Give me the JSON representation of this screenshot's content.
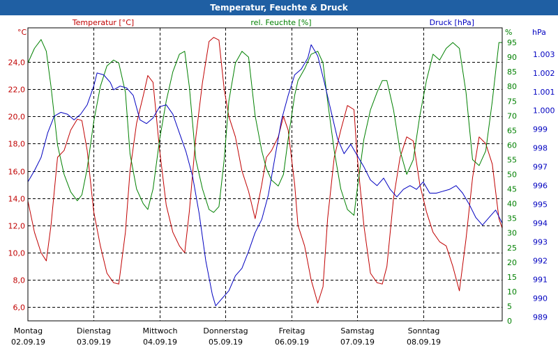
{
  "window": {
    "title": "Temperatur, Feuchte & Druck"
  },
  "colors": {
    "temperature": "#c00000",
    "humidity": "#008000",
    "pressure": "#0000c0",
    "grid": "#000000",
    "title_bar": "#1f5fa3"
  },
  "chart_data": {
    "type": "line",
    "title": "Temperatur, Feuchte & Druck",
    "grid": true,
    "x_unit": "days since 02.09.19 00:00",
    "xlim": [
      0,
      7.2
    ],
    "day_labels": [
      {
        "x": 0,
        "day": "Montag",
        "date": "02.09.19"
      },
      {
        "x": 1,
        "day": "Dienstag",
        "date": "03.09.19"
      },
      {
        "x": 2,
        "day": "Mittwoch",
        "date": "04.09.19"
      },
      {
        "x": 3,
        "day": "Donnerstag",
        "date": "05.09.19"
      },
      {
        "x": 4,
        "day": "Freitag",
        "date": "06.09.19"
      },
      {
        "x": 5,
        "day": "Samstag",
        "date": "07.09.19"
      },
      {
        "x": 6,
        "day": "Sonntag",
        "date": "08.09.19"
      }
    ],
    "axes": {
      "temperature": {
        "label": "Temperatur [°C]",
        "unit": "°C",
        "side": "left",
        "range": [
          5.0,
          26.5
        ],
        "ticks": [
          {
            "v": 6,
            "t": "6,0"
          },
          {
            "v": 8,
            "t": "8,0"
          },
          {
            "v": 10,
            "t": "10,0"
          },
          {
            "v": 12,
            "t": "12,0"
          },
          {
            "v": 14,
            "t": "14,0"
          },
          {
            "v": 16,
            "t": "16,0"
          },
          {
            "v": 18,
            "t": "18,0"
          },
          {
            "v": 20,
            "t": "20,0"
          },
          {
            "v": 22,
            "t": "22,0"
          },
          {
            "v": 24,
            "t": "24,0"
          }
        ]
      },
      "humidity": {
        "label": "rel. Feuchte [%]",
        "unit": "%",
        "side": "right",
        "range": [
          0,
          100
        ],
        "ticks": [
          {
            "v": 0,
            "t": "0"
          },
          {
            "v": 5,
            "t": "5"
          },
          {
            "v": 10,
            "t": "10"
          },
          {
            "v": 15,
            "t": "15"
          },
          {
            "v": 20,
            "t": "20"
          },
          {
            "v": 25,
            "t": "25"
          },
          {
            "v": 30,
            "t": "30"
          },
          {
            "v": 35,
            "t": "35"
          },
          {
            "v": 40,
            "t": "40"
          },
          {
            "v": 45,
            "t": "45"
          },
          {
            "v": 50,
            "t": "50"
          },
          {
            "v": 55,
            "t": "55"
          },
          {
            "v": 60,
            "t": "60"
          },
          {
            "v": 65,
            "t": "65"
          },
          {
            "v": 70,
            "t": "70"
          },
          {
            "v": 75,
            "t": "75"
          },
          {
            "v": 80,
            "t": "80"
          },
          {
            "v": 85,
            "t": "85"
          },
          {
            "v": 90,
            "t": "90"
          },
          {
            "v": 95,
            "t": "95"
          }
        ]
      },
      "pressure": {
        "label": "Druck [hPa]",
        "unit": "hPa",
        "side": "right",
        "range": [
          988.8,
          1004.4
        ],
        "ticks": [
          {
            "v": 989,
            "t": "989"
          },
          {
            "v": 990,
            "t": "990"
          },
          {
            "v": 991,
            "t": "991"
          },
          {
            "v": 992,
            "t": "992"
          },
          {
            "v": 993,
            "t": "993"
          },
          {
            "v": 994,
            "t": "994"
          },
          {
            "v": 995,
            "t": "995"
          },
          {
            "v": 996,
            "t": "996"
          },
          {
            "v": 997,
            "t": "997"
          },
          {
            "v": 998,
            "t": "998"
          },
          {
            "v": 999,
            "t": "999"
          },
          {
            "v": 1000,
            "t": "1.000"
          },
          {
            "v": 1001,
            "t": "1.001"
          },
          {
            "v": 1002,
            "t": "1.002"
          },
          {
            "v": 1003,
            "t": "1.003"
          }
        ]
      }
    },
    "series": [
      {
        "name": "Temperatur",
        "axis": "temperature",
        "points": [
          [
            0.0,
            13.8
          ],
          [
            0.1,
            11.5
          ],
          [
            0.2,
            10.0
          ],
          [
            0.28,
            9.4
          ],
          [
            0.35,
            12.0
          ],
          [
            0.45,
            17.0
          ],
          [
            0.55,
            17.5
          ],
          [
            0.65,
            19.0
          ],
          [
            0.75,
            19.8
          ],
          [
            0.82,
            19.7
          ],
          [
            0.9,
            17.5
          ],
          [
            1.0,
            13.0
          ],
          [
            1.1,
            10.5
          ],
          [
            1.2,
            8.5
          ],
          [
            1.3,
            7.8
          ],
          [
            1.38,
            7.7
          ],
          [
            1.48,
            11.5
          ],
          [
            1.55,
            16.0
          ],
          [
            1.65,
            19.5
          ],
          [
            1.75,
            21.5
          ],
          [
            1.82,
            23.0
          ],
          [
            1.9,
            22.5
          ],
          [
            2.0,
            17.5
          ],
          [
            2.1,
            13.5
          ],
          [
            2.2,
            11.5
          ],
          [
            2.3,
            10.5
          ],
          [
            2.38,
            10.0
          ],
          [
            2.45,
            13.0
          ],
          [
            2.55,
            18.5
          ],
          [
            2.65,
            22.5
          ],
          [
            2.75,
            25.5
          ],
          [
            2.82,
            25.8
          ],
          [
            2.9,
            25.6
          ],
          [
            2.98,
            22.0
          ],
          [
            3.05,
            20.0
          ],
          [
            3.15,
            18.5
          ],
          [
            3.25,
            16.0
          ],
          [
            3.35,
            14.5
          ],
          [
            3.45,
            12.5
          ],
          [
            3.55,
            15.0
          ],
          [
            3.62,
            17.0
          ],
          [
            3.7,
            17.5
          ],
          [
            3.8,
            18.5
          ],
          [
            3.88,
            20.0
          ],
          [
            3.95,
            19.0
          ],
          [
            4.05,
            15.0
          ],
          [
            4.1,
            12.0
          ],
          [
            4.2,
            10.5
          ],
          [
            4.3,
            8.0
          ],
          [
            4.4,
            6.3
          ],
          [
            4.48,
            7.5
          ],
          [
            4.55,
            12.5
          ],
          [
            4.65,
            17.0
          ],
          [
            4.75,
            19.0
          ],
          [
            4.85,
            20.8
          ],
          [
            4.95,
            20.5
          ],
          [
            5.0,
            17.0
          ],
          [
            5.1,
            12.0
          ],
          [
            5.2,
            8.5
          ],
          [
            5.3,
            7.8
          ],
          [
            5.38,
            7.7
          ],
          [
            5.45,
            9.0
          ],
          [
            5.55,
            14.0
          ],
          [
            5.65,
            17.0
          ],
          [
            5.75,
            18.5
          ],
          [
            5.85,
            18.2
          ],
          [
            5.95,
            15.0
          ],
          [
            6.05,
            13.0
          ],
          [
            6.15,
            11.5
          ],
          [
            6.25,
            10.8
          ],
          [
            6.35,
            10.5
          ],
          [
            6.45,
            9.0
          ],
          [
            6.55,
            7.2
          ],
          [
            6.65,
            11.0
          ],
          [
            6.75,
            15.5
          ],
          [
            6.85,
            18.5
          ],
          [
            6.95,
            18.0
          ],
          [
            7.05,
            16.5
          ],
          [
            7.15,
            12.5
          ],
          [
            7.2,
            11.8
          ]
        ]
      },
      {
        "name": "rel. Feuchte",
        "axis": "humidity",
        "points": [
          [
            0.0,
            88
          ],
          [
            0.1,
            93
          ],
          [
            0.2,
            96
          ],
          [
            0.28,
            92
          ],
          [
            0.35,
            80
          ],
          [
            0.45,
            60
          ],
          [
            0.55,
            50
          ],
          [
            0.65,
            44
          ],
          [
            0.75,
            41
          ],
          [
            0.82,
            43
          ],
          [
            0.9,
            52
          ],
          [
            1.0,
            68
          ],
          [
            1.1,
            80
          ],
          [
            1.2,
            87
          ],
          [
            1.3,
            89
          ],
          [
            1.38,
            88
          ],
          [
            1.48,
            78
          ],
          [
            1.55,
            57
          ],
          [
            1.65,
            45
          ],
          [
            1.75,
            40
          ],
          [
            1.82,
            38
          ],
          [
            1.9,
            45
          ],
          [
            2.0,
            62
          ],
          [
            2.1,
            75
          ],
          [
            2.2,
            85
          ],
          [
            2.3,
            91
          ],
          [
            2.38,
            92
          ],
          [
            2.45,
            80
          ],
          [
            2.55,
            55
          ],
          [
            2.65,
            45
          ],
          [
            2.75,
            38
          ],
          [
            2.82,
            37
          ],
          [
            2.9,
            39
          ],
          [
            2.98,
            55
          ],
          [
            3.05,
            75
          ],
          [
            3.15,
            88
          ],
          [
            3.25,
            92
          ],
          [
            3.35,
            90
          ],
          [
            3.45,
            70
          ],
          [
            3.55,
            58
          ],
          [
            3.62,
            52
          ],
          [
            3.7,
            48
          ],
          [
            3.8,
            46
          ],
          [
            3.88,
            50
          ],
          [
            3.95,
            62
          ],
          [
            4.05,
            77
          ],
          [
            4.1,
            82
          ],
          [
            4.2,
            86
          ],
          [
            4.3,
            91
          ],
          [
            4.4,
            92
          ],
          [
            4.48,
            88
          ],
          [
            4.55,
            75
          ],
          [
            4.65,
            58
          ],
          [
            4.75,
            45
          ],
          [
            4.85,
            38
          ],
          [
            4.95,
            36
          ],
          [
            5.0,
            45
          ],
          [
            5.1,
            62
          ],
          [
            5.2,
            72
          ],
          [
            5.3,
            78
          ],
          [
            5.38,
            82
          ],
          [
            5.45,
            82
          ],
          [
            5.55,
            72
          ],
          [
            5.65,
            58
          ],
          [
            5.75,
            50
          ],
          [
            5.85,
            55
          ],
          [
            5.95,
            70
          ],
          [
            6.05,
            82
          ],
          [
            6.15,
            91
          ],
          [
            6.25,
            89
          ],
          [
            6.35,
            93
          ],
          [
            6.45,
            95
          ],
          [
            6.55,
            93
          ],
          [
            6.65,
            78
          ],
          [
            6.75,
            55
          ],
          [
            6.85,
            53
          ],
          [
            6.95,
            58
          ],
          [
            7.05,
            75
          ],
          [
            7.15,
            95
          ],
          [
            7.2,
            95
          ]
        ]
      },
      {
        "name": "Druck",
        "axis": "pressure",
        "points": [
          [
            0.0,
            996.2
          ],
          [
            0.1,
            996.8
          ],
          [
            0.2,
            997.5
          ],
          [
            0.3,
            998.8
          ],
          [
            0.4,
            999.7
          ],
          [
            0.5,
            999.9
          ],
          [
            0.6,
            999.8
          ],
          [
            0.7,
            999.5
          ],
          [
            0.8,
            999.8
          ],
          [
            0.9,
            1000.3
          ],
          [
            1.0,
            1001.3
          ],
          [
            1.05,
            1002.0
          ],
          [
            1.15,
            1001.9
          ],
          [
            1.25,
            1001.5
          ],
          [
            1.3,
            1001.1
          ],
          [
            1.4,
            1001.3
          ],
          [
            1.5,
            1001.2
          ],
          [
            1.6,
            1000.8
          ],
          [
            1.7,
            999.5
          ],
          [
            1.8,
            999.3
          ],
          [
            1.9,
            999.6
          ],
          [
            2.0,
            1000.2
          ],
          [
            2.1,
            1000.3
          ],
          [
            2.2,
            999.8
          ],
          [
            2.3,
            998.8
          ],
          [
            2.4,
            997.8
          ],
          [
            2.5,
            996.5
          ],
          [
            2.6,
            994.5
          ],
          [
            2.7,
            992.0
          ],
          [
            2.8,
            990.2
          ],
          [
            2.85,
            989.6
          ],
          [
            2.95,
            990.0
          ],
          [
            3.05,
            990.4
          ],
          [
            3.15,
            991.2
          ],
          [
            3.25,
            991.6
          ],
          [
            3.35,
            992.5
          ],
          [
            3.45,
            993.5
          ],
          [
            3.55,
            994.2
          ],
          [
            3.65,
            995.5
          ],
          [
            3.75,
            997.5
          ],
          [
            3.85,
            999.5
          ],
          [
            3.95,
            1000.8
          ],
          [
            4.05,
            1001.9
          ],
          [
            4.15,
            1002.2
          ],
          [
            4.25,
            1002.8
          ],
          [
            4.3,
            1003.5
          ],
          [
            4.4,
            1002.9
          ],
          [
            4.5,
            1001.5
          ],
          [
            4.6,
            1000.0
          ],
          [
            4.7,
            998.5
          ],
          [
            4.8,
            997.7
          ],
          [
            4.9,
            998.2
          ],
          [
            5.0,
            997.6
          ],
          [
            5.1,
            997.0
          ],
          [
            5.2,
            996.3
          ],
          [
            5.3,
            996.0
          ],
          [
            5.4,
            996.4
          ],
          [
            5.5,
            995.8
          ],
          [
            5.6,
            995.4
          ],
          [
            5.7,
            995.8
          ],
          [
            5.8,
            996.0
          ],
          [
            5.9,
            995.8
          ],
          [
            6.0,
            996.2
          ],
          [
            6.1,
            995.6
          ],
          [
            6.2,
            995.6
          ],
          [
            6.3,
            995.7
          ],
          [
            6.4,
            995.8
          ],
          [
            6.5,
            996.0
          ],
          [
            6.6,
            995.6
          ],
          [
            6.7,
            995.0
          ],
          [
            6.8,
            994.3
          ],
          [
            6.9,
            993.9
          ],
          [
            7.0,
            994.3
          ],
          [
            7.1,
            994.7
          ],
          [
            7.2,
            994.0
          ]
        ]
      }
    ]
  }
}
